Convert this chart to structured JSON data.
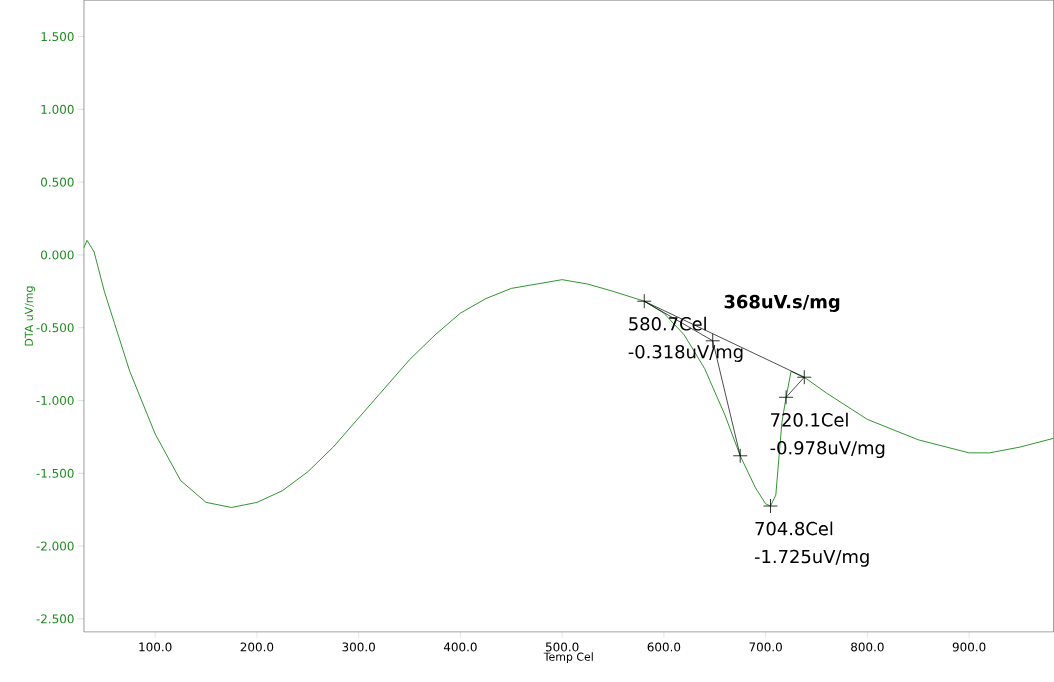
{
  "chart_data": {
    "type": "line",
    "xlabel": "Temp Cel",
    "ylabel": "DTA uV/mg",
    "xlim": [
      30,
      983
    ],
    "ylim": [
      -2.59,
      1.75
    ],
    "xticks": [
      {
        "value": 100,
        "label": "100.0"
      },
      {
        "value": 200,
        "label": "200.0"
      },
      {
        "value": 300,
        "label": "300.0"
      },
      {
        "value": 400,
        "label": "400.0"
      },
      {
        "value": 500,
        "label": "500.0"
      },
      {
        "value": 600,
        "label": "600.0"
      },
      {
        "value": 700,
        "label": "700.0"
      },
      {
        "value": 800,
        "label": "800.0"
      },
      {
        "value": 900,
        "label": "900.0"
      }
    ],
    "yticks": [
      {
        "value": 1.5,
        "label": "1.500"
      },
      {
        "value": 1.0,
        "label": "1.000"
      },
      {
        "value": 0.5,
        "label": "0.500"
      },
      {
        "value": 0.0,
        "label": "0.000"
      },
      {
        "value": -0.5,
        "label": "-0.500"
      },
      {
        "value": -1.0,
        "label": "-1.000"
      },
      {
        "value": -1.5,
        "label": "-1.500"
      },
      {
        "value": -2.0,
        "label": "-2.000"
      },
      {
        "value": -2.5,
        "label": "-2.500"
      }
    ],
    "series": [
      {
        "color": "#1a8a1a",
        "line_style": "solid",
        "marker": "none",
        "x": [
          30,
          33,
          40,
          50,
          60,
          75,
          100,
          125,
          150,
          175,
          200,
          225,
          250,
          275,
          300,
          325,
          350,
          375,
          400,
          425,
          450,
          475,
          500,
          525,
          550,
          580.7,
          600,
          620,
          640,
          660,
          675,
          690,
          700,
          704.8,
          710,
          713,
          716,
          720.1,
          725,
          740,
          760,
          800,
          850,
          900,
          920,
          950,
          983
        ],
        "values": [
          0.05,
          0.1,
          0.02,
          -0.25,
          -0.47,
          -0.8,
          -1.23,
          -1.55,
          -1.7,
          -1.735,
          -1.7,
          -1.62,
          -1.49,
          -1.32,
          -1.12,
          -0.92,
          -0.72,
          -0.55,
          -0.4,
          -0.3,
          -0.23,
          -0.2,
          -0.17,
          -0.2,
          -0.25,
          -0.318,
          -0.4,
          -0.55,
          -0.78,
          -1.1,
          -1.38,
          -1.6,
          -1.71,
          -1.725,
          -1.65,
          -1.4,
          -1.15,
          -0.978,
          -0.8,
          -0.85,
          -0.95,
          -1.13,
          -1.27,
          -1.36,
          -1.36,
          -1.32,
          -1.26
        ]
      },
      {
        "type": "line",
        "color": "#000000",
        "line_style": "solid",
        "marker": "none",
        "x": [
          580.7,
          738
        ],
        "values": [
          -0.318,
          -0.84
        ]
      },
      {
        "type": "line",
        "color": "#000000",
        "line_style": "solid",
        "marker": "none",
        "x": [
          580.7,
          648,
          675
        ],
        "values": [
          -0.318,
          -0.59,
          -1.38
        ]
      },
      {
        "type": "line",
        "color": "#000000",
        "line_style": "solid",
        "marker": "none",
        "x": [
          720.1,
          738
        ],
        "values": [
          -0.978,
          -0.84
        ]
      },
      {
        "type": "scatter",
        "color": "#000000",
        "marker": "cross",
        "x": [
          580.7,
          648,
          675,
          704.8,
          720.1,
          738
        ],
        "values": [
          -0.318,
          -0.59,
          -1.38,
          -1.725,
          -0.978,
          -0.84
        ]
      }
    ],
    "annotations": [
      {
        "text": "580.7Cel -0.318uV/mg",
        "x": 580.7,
        "y": -0.318
      },
      {
        "text": "720.1Cel -0.978uV/mg",
        "x": 720.1,
        "y": -0.978
      },
      {
        "text": "704.8Cel -1.725uV/mg",
        "x": 704.8,
        "y": -1.725
      },
      "368uV.s/mg"
    ]
  }
}
